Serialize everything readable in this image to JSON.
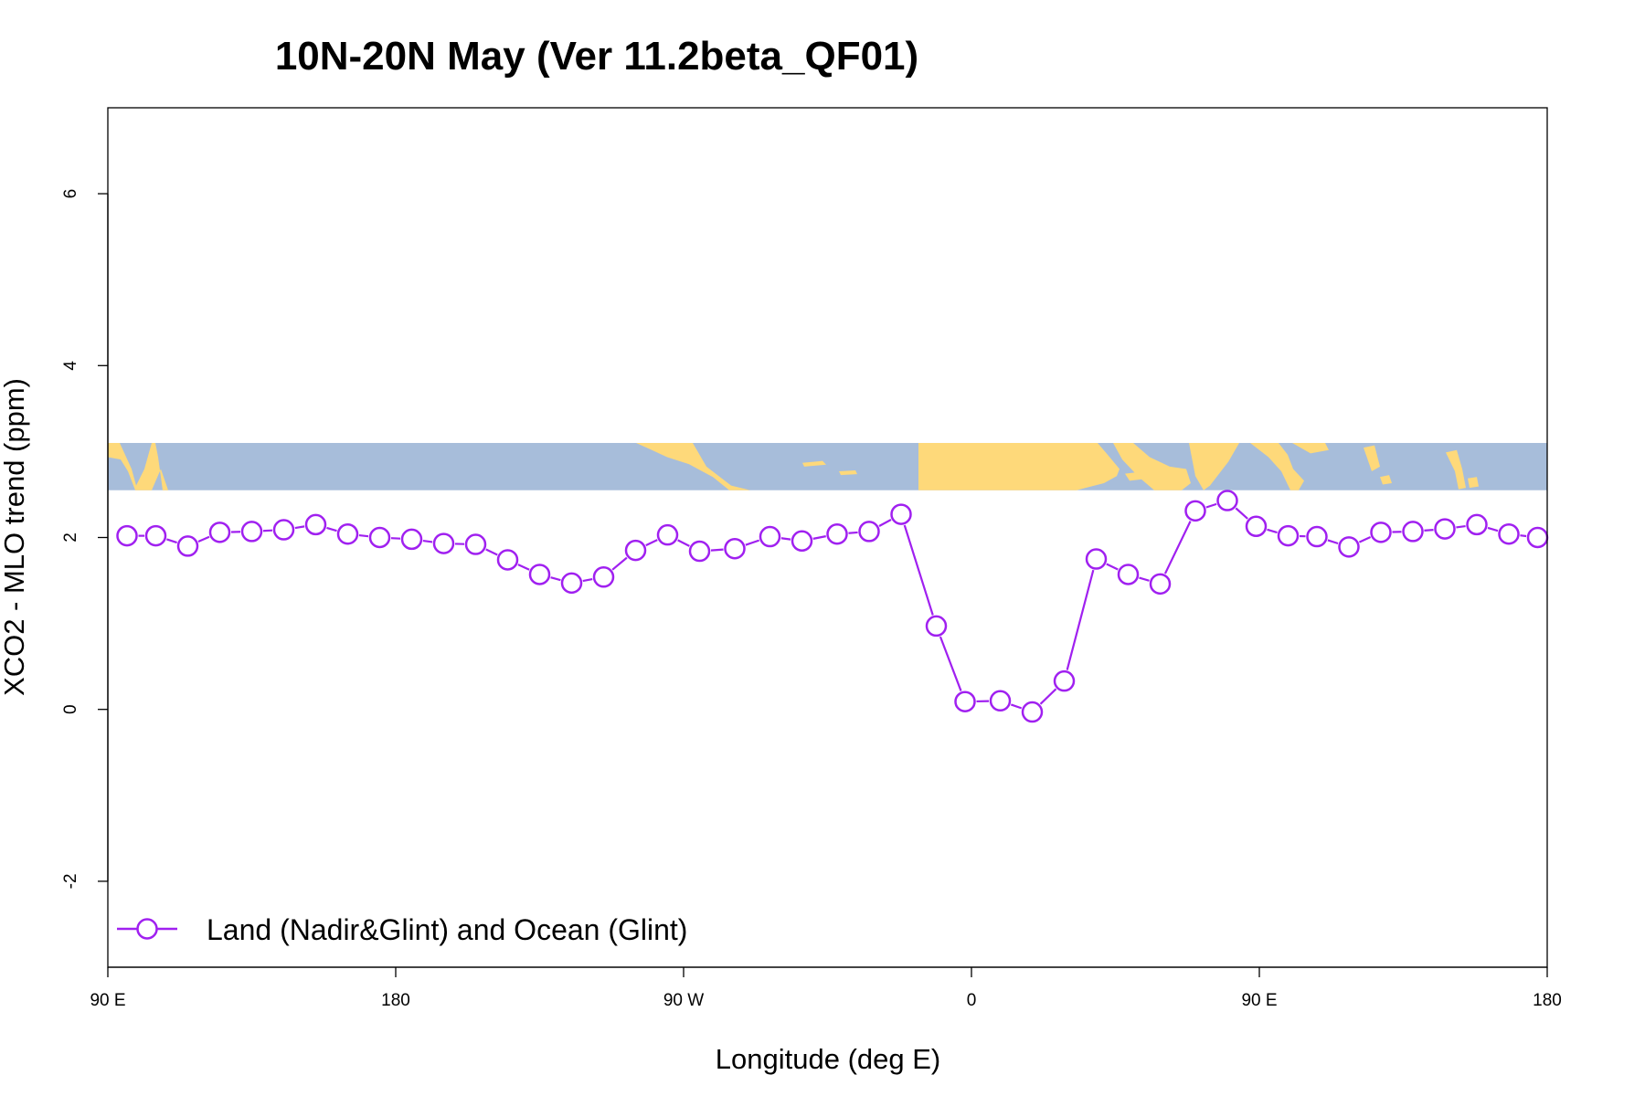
{
  "chart_data": {
    "type": "line",
    "title": "10N-20N May (Ver 11.2beta_QF01)",
    "xlabel": "Longitude (deg E)",
    "ylabel": "XCO2 - MLO trend (ppm)",
    "xlim": [
      90,
      540
    ],
    "ylim": [
      -3,
      7
    ],
    "x_ticks": [
      {
        "value": 90,
        "label": "90 E"
      },
      {
        "value": 180,
        "label": "180"
      },
      {
        "value": 270,
        "label": "90 W"
      },
      {
        "value": 360,
        "label": "0"
      },
      {
        "value": 450,
        "label": "90 E"
      },
      {
        "value": 540,
        "label": "180"
      }
    ],
    "y_ticks": [
      {
        "value": -2,
        "label": "-2"
      },
      {
        "value": 0,
        "label": "0"
      },
      {
        "value": 2,
        "label": "2"
      },
      {
        "value": 4,
        "label": "4"
      },
      {
        "value": 6,
        "label": "6"
      }
    ],
    "grid": false,
    "legend_position": "bottom-left",
    "series": [
      {
        "name": "Land (Nadir&Glint) and Ocean (Glint)",
        "color": "#a020f0",
        "marker": "open-circle",
        "x": [
          96,
          105,
          115,
          125,
          135,
          145,
          155,
          165,
          175,
          185,
          195,
          205,
          215,
          225,
          235,
          245,
          255,
          265,
          275,
          286,
          297,
          307,
          318,
          328,
          338,
          349,
          358,
          369,
          379,
          389,
          399,
          409,
          419,
          430,
          440,
          449,
          459,
          468,
          478,
          488,
          498,
          508,
          518,
          528,
          537
        ],
        "y": [
          2.02,
          2.02,
          1.9,
          2.06,
          2.07,
          2.09,
          2.15,
          2.04,
          2.0,
          1.98,
          1.93,
          1.92,
          1.74,
          1.57,
          1.47,
          1.54,
          1.85,
          2.03,
          1.84,
          1.87,
          2.01,
          1.96,
          2.04,
          2.07,
          2.27,
          0.97,
          0.09,
          0.1,
          -0.03,
          0.33,
          1.75,
          1.57,
          1.46,
          2.31,
          2.43,
          2.13,
          2.02,
          2.01,
          1.89,
          2.06,
          2.07,
          2.1,
          2.15,
          2.04,
          2.0
        ]
      }
    ],
    "map_strip": {
      "y_range": [
        2.55,
        3.1
      ],
      "ocean_color": "#a7bdda",
      "land_color": "#fed97a"
    }
  }
}
